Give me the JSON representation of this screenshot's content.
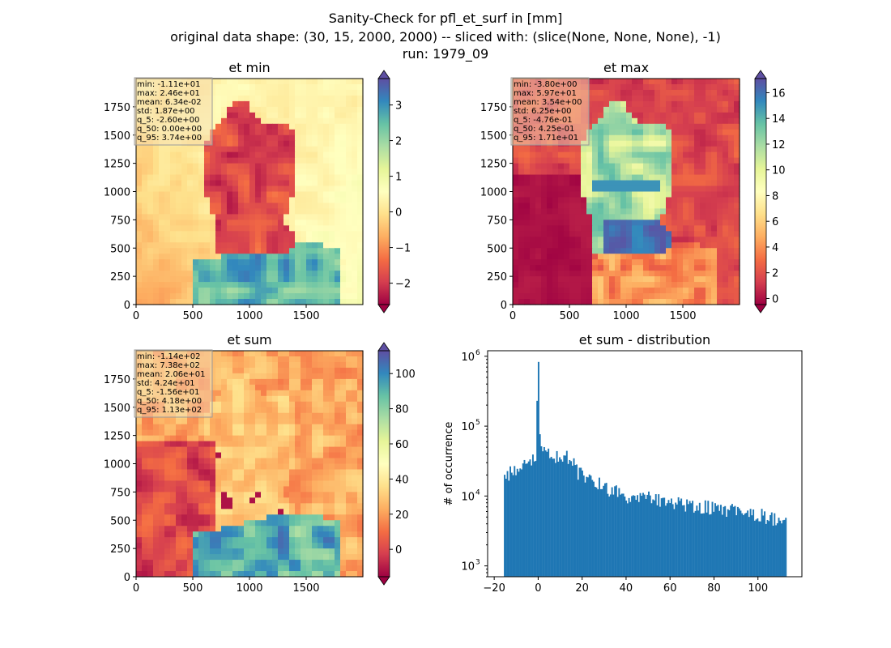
{
  "figure": {
    "title_line1": "Sanity-Check for pfl_et_surf in [mm]",
    "title_line2": "original data shape: (30, 15, 2000, 2000) -- sliced with: (slice(None, None, None), -1)",
    "title_line3": "run: 1979_09"
  },
  "chart_data": [
    {
      "type": "heatmap",
      "title": "et min",
      "colormap": "Spectral",
      "x_ticks": [
        0,
        500,
        1000,
        1500
      ],
      "y_ticks": [
        0,
        250,
        500,
        750,
        1000,
        1250,
        1500,
        1750
      ],
      "xlim": [
        0,
        2000
      ],
      "ylim": [
        0,
        2000
      ],
      "colorbar": {
        "min": -2.6,
        "max": 3.74,
        "ticks": [
          -2,
          -1,
          0,
          1,
          2,
          3
        ],
        "tick_labels": [
          "−2",
          "−1",
          "0",
          "1",
          "2",
          "3"
        ],
        "extend": "both"
      },
      "stats": [
        "min: -1.11e+01",
        "max: 2.46e+01",
        "mean: 6.34e-02",
        "std: 1.87e+00",
        "q_5: -2.60e+00",
        "q_50: 0.00e+00",
        "q_95: 3.74e+00"
      ]
    },
    {
      "type": "heatmap",
      "title": "et max",
      "colormap": "Spectral",
      "x_ticks": [
        0,
        500,
        1000,
        1500
      ],
      "y_ticks": [
        0,
        250,
        500,
        750,
        1000,
        1250,
        1500,
        1750
      ],
      "xlim": [
        0,
        2000
      ],
      "ylim": [
        0,
        2000
      ],
      "colorbar": {
        "min": -0.476,
        "max": 17.1,
        "ticks": [
          0,
          2,
          4,
          6,
          8,
          10,
          12,
          14,
          16
        ],
        "tick_labels": [
          "0",
          "2",
          "4",
          "6",
          "8",
          "10",
          "12",
          "14",
          "16"
        ],
        "extend": "both"
      },
      "stats": [
        "min: -3.80e+00",
        "max: 5.97e+01",
        "mean: 3.54e+00",
        "std: 6.25e+00",
        "q_5: -4.76e-01",
        "q_50: 4.25e-01",
        "q_95: 1.71e+01"
      ]
    },
    {
      "type": "heatmap",
      "title": "et sum",
      "colormap": "Spectral",
      "x_ticks": [
        0,
        500,
        1000,
        1500
      ],
      "y_ticks": [
        0,
        250,
        500,
        750,
        1000,
        1250,
        1500,
        1750
      ],
      "xlim": [
        0,
        2000
      ],
      "ylim": [
        0,
        2000
      ],
      "colorbar": {
        "min": -15.6,
        "max": 113,
        "ticks": [
          0,
          20,
          40,
          60,
          80,
          100
        ],
        "tick_labels": [
          "0",
          "20",
          "40",
          "60",
          "80",
          "100"
        ],
        "extend": "both"
      },
      "stats": [
        "min: -1.14e+02",
        "max: 7.38e+02",
        "mean: 2.06e+01",
        "std: 4.24e+01",
        "q_5: -1.56e+01",
        "q_50: 4.18e+00",
        "q_95: 1.13e+02"
      ]
    },
    {
      "type": "bar",
      "title": "et sum - distribution",
      "ylabel": "# of occurrence",
      "yscale": "log",
      "xlim": [
        -23,
        120
      ],
      "ylim": [
        700,
        1200000
      ],
      "x_ticks": [
        -20,
        0,
        20,
        40,
        60,
        80,
        100
      ],
      "x_tick_labels": [
        "−20",
        "0",
        "20",
        "40",
        "60",
        "80",
        "100"
      ],
      "y_ticks": [
        1000,
        10000,
        100000,
        1000000
      ],
      "y_tick_labels": [
        "10",
        "10",
        "10",
        "10"
      ],
      "y_tick_exponents": [
        "3",
        "4",
        "5",
        "6"
      ],
      "bar_color": "#1f77b4",
      "bins": {
        "start": -15.6,
        "end": 113,
        "count": 200
      },
      "anchor_points": [
        [
          -15.6,
          18000
        ],
        [
          -10,
          25000
        ],
        [
          -5,
          30000
        ],
        [
          -1,
          35000
        ],
        [
          -0.05,
          830000
        ],
        [
          1,
          42000
        ],
        [
          10,
          38000
        ],
        [
          16,
          34000
        ],
        [
          18,
          22000
        ],
        [
          25,
          16000
        ],
        [
          40,
          10500
        ],
        [
          60,
          8500
        ],
        [
          80,
          6800
        ],
        [
          100,
          5500
        ],
        [
          113,
          4000
        ]
      ]
    }
  ]
}
